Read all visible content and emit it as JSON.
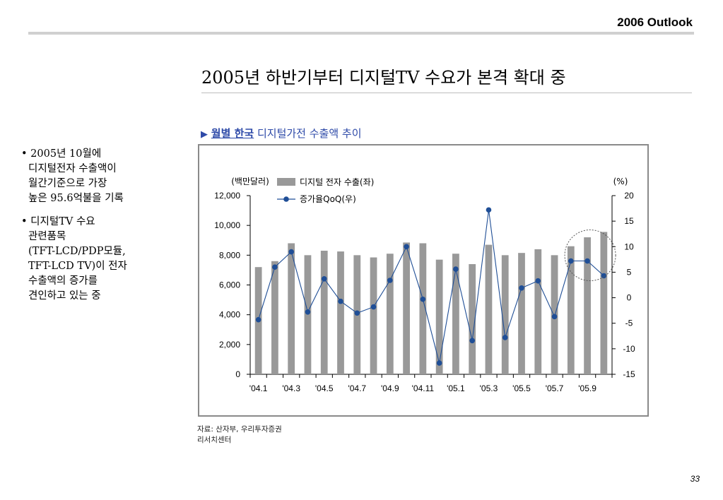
{
  "header": {
    "label": "2006 Outlook"
  },
  "title": "2005년 하반기부터 디지털TV 수요가 본격 확대 중",
  "subtitle": {
    "marker": "▶",
    "bold": "월별 한국",
    "rest": " 디지털가전 수출액 추이"
  },
  "bullets": [
    [
      "2005년 10월에",
      "디지털전자 수출액이",
      "월간기준으로 가장",
      "높은 95.6억불을 기록"
    ],
    [
      "디지털TV 수요",
      "관련품목",
      "(TFT-LCD/PDP모듈,",
      "TFT-LCD TV)이 전자",
      "수출액의 증가를",
      "견인하고 있는 중"
    ]
  ],
  "source": [
    "자료: 산자부, 우리투자증권",
    "리서치센터"
  ],
  "page_number": "33",
  "colors": {
    "bar": "#999999",
    "line": "#1f4e96",
    "marker": "#1f4e96"
  },
  "chart_data": {
    "type": "bar",
    "secondary_type": "line",
    "left_unit": "(백만달러)",
    "right_unit": "(%)",
    "legend": [
      "디지털 전자 수출(좌)",
      "증가율QoQ(우)"
    ],
    "x_tick_labels": [
      "'04.1",
      "'04.3",
      "'04.5",
      "'04.7",
      "'04.9",
      "'04.11",
      "'05.1",
      "'05.3",
      "'05.5",
      "'05.7",
      "'05.9"
    ],
    "categories": [
      "'04.1",
      "'04.2",
      "'04.3",
      "'04.4",
      "'04.5",
      "'04.6",
      "'04.7",
      "'04.8",
      "'04.9",
      "'04.10",
      "'04.11",
      "'04.12",
      "'05.1",
      "'05.2",
      "'05.3",
      "'05.4",
      "'05.5",
      "'05.6",
      "'05.7",
      "'05.8",
      "'05.9",
      "'05.10"
    ],
    "series": [
      {
        "name": "디지털 전자 수출(좌)",
        "axis": "left",
        "values": [
          7200,
          7600,
          8800,
          8000,
          8300,
          8250,
          8000,
          7850,
          8100,
          8850,
          8800,
          7700,
          8100,
          7400,
          8700,
          8000,
          8150,
          8400,
          8000,
          8600,
          9200,
          9560
        ]
      },
      {
        "name": "증가율QoQ(우)",
        "axis": "right",
        "values": [
          -4.3,
          6.0,
          9.0,
          -2.8,
          3.7,
          -0.7,
          -3.0,
          -1.8,
          3.4,
          10.0,
          -0.3,
          -12.8,
          5.6,
          -8.4,
          17.2,
          -7.8,
          1.9,
          3.3,
          -3.7,
          7.2,
          7.2,
          4.3
        ]
      }
    ],
    "ylim_left": [
      0,
      12000
    ],
    "yticks_left": [
      "0",
      "2,000",
      "4,000",
      "6,000",
      "8,000",
      "10,000",
      "12,000"
    ],
    "ylim_right": [
      -15,
      20
    ],
    "yticks_right": [
      "-15",
      "-10",
      "-5",
      "0",
      "5",
      "10",
      "15",
      "20"
    ],
    "grid": false,
    "legend_position": "top",
    "highlight_circle_around": "'05.10"
  }
}
